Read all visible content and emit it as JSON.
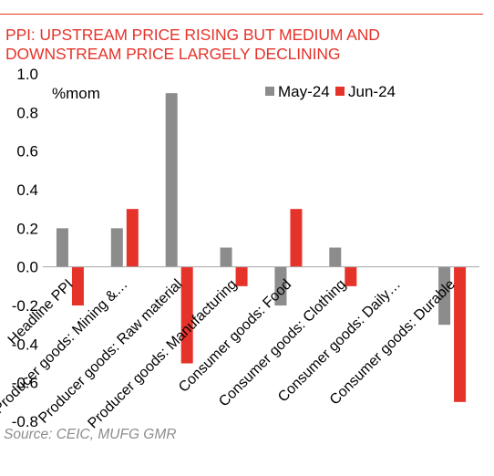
{
  "header": {
    "title_line1": "PPI: UPSTREAM PRICE RISING BUT MEDIUM AND",
    "title_line2": "DOWNSTREAM PRICE LARGELY DECLINING"
  },
  "footer": {
    "source": "Source: CEIC, MUFG GMR"
  },
  "colors": {
    "accent": "#e6332a",
    "series_may": "#8c8c8c",
    "series_jun": "#e6332a",
    "axis": "#a6a6a6"
  },
  "chart_data": {
    "type": "bar",
    "title": "PPI: UPSTREAM PRICE RISING BUT MEDIUM AND DOWNSTREAM PRICE LARGELY DECLINING",
    "ylabel": "%mom",
    "xlabel": "",
    "ylim": [
      -0.8,
      1.0
    ],
    "yticks": [
      "1.0",
      "0.8",
      "0.6",
      "0.4",
      "0.2",
      "0.0",
      "-0.2",
      "-0.4",
      "-0.6",
      "-0.8"
    ],
    "ytick_values": [
      1.0,
      0.8,
      0.6,
      0.4,
      0.2,
      0.0,
      -0.2,
      -0.4,
      -0.6,
      -0.8
    ],
    "categories": [
      "Headline PPI",
      "Producer goods: Mining &…",
      "Producer goods: Raw material",
      "Producer goods: Manufacturing",
      "Consumer goods: Food",
      "Consumer goods: Clothing",
      "Consumer goods: Daily…",
      "Consumer goods: Durable"
    ],
    "series": [
      {
        "name": "May-24",
        "color": "#8c8c8c",
        "values": [
          0.2,
          0.2,
          0.9,
          0.1,
          -0.2,
          0.1,
          0.0,
          -0.3
        ]
      },
      {
        "name": "Jun-24",
        "color": "#e6332a",
        "values": [
          -0.2,
          0.3,
          -0.5,
          -0.1,
          0.3,
          -0.1,
          0.0,
          -0.7
        ]
      }
    ],
    "legend_position": "top-right",
    "grid": false
  }
}
